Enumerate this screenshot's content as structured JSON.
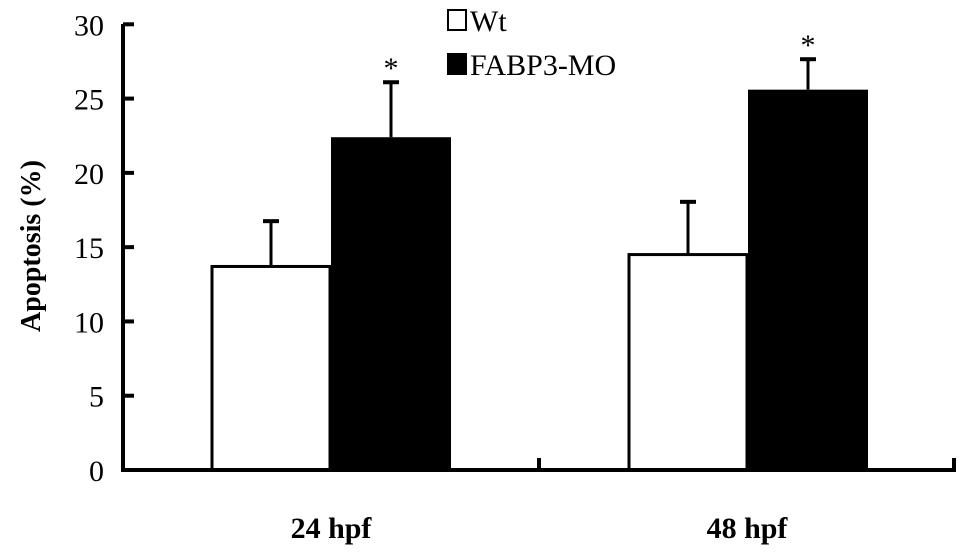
{
  "chart_data": {
    "type": "bar",
    "title": "",
    "xlabel": "",
    "ylabel": "Apoptosis (%)",
    "ylim": [
      0,
      30
    ],
    "yticks": [
      "0",
      "5",
      "10",
      "15",
      "20",
      "25",
      "30"
    ],
    "categories": [
      "24 hpf",
      "48 hpf"
    ],
    "series": [
      {
        "name": "Wt",
        "color": "#ffffff",
        "values": [
          13.7,
          14.5
        ],
        "error_upper": [
          16.75,
          18.05
        ],
        "significance": [
          "",
          ""
        ]
      },
      {
        "name": "FABP3-MO",
        "color": "#000000",
        "values": [
          22.4,
          25.6
        ],
        "error_upper": [
          26.1,
          27.65
        ],
        "significance": [
          "*",
          "*"
        ]
      }
    ],
    "grid": false,
    "legend_position": "top-center"
  }
}
